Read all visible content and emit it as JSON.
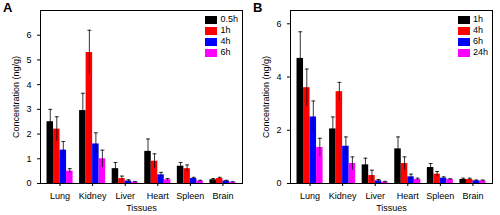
{
  "chart_data": [
    {
      "type": "bar",
      "title": "A",
      "x_label": "Tissues",
      "y_label": "Concentration (ng/g)",
      "categories": [
        "Lung",
        "Kidney",
        "Liver",
        "Heart",
        "Spleen",
        "Brain"
      ],
      "series": [
        {
          "name": "0.5h",
          "color": "#000000",
          "values": [
            2.5,
            2.95,
            0.6,
            1.3,
            0.7,
            0.15
          ],
          "errors": [
            0.5,
            0.7,
            0.25,
            0.5,
            0.15,
            0.05
          ]
        },
        {
          "name": "1h",
          "color": "#ff0000",
          "values": [
            2.2,
            5.3,
            0.2,
            0.9,
            0.6,
            0.2
          ],
          "errors": [
            0.5,
            0.9,
            0.1,
            0.3,
            0.15,
            0.05
          ]
        },
        {
          "name": "4h",
          "color": "#0000ff",
          "values": [
            1.35,
            1.6,
            0.1,
            0.35,
            0.2,
            0.1
          ],
          "errors": [
            0.35,
            0.45,
            0.05,
            0.1,
            0.05,
            0.03
          ]
        },
        {
          "name": "6h",
          "color": "#ff00ff",
          "values": [
            0.5,
            1.0,
            0.05,
            0.15,
            0.1,
            0.05
          ],
          "errors": [
            0.1,
            0.35,
            0.03,
            0.05,
            0.03,
            0.02
          ]
        }
      ],
      "ylim": [
        0,
        7
      ],
      "yticks": [
        0,
        1,
        2,
        3,
        4,
        5,
        6
      ],
      "legend": "upper right"
    },
    {
      "type": "bar",
      "title": "B",
      "x_label": "Tissues",
      "y_label": "Concentration (ng/g)",
      "categories": [
        "Lung",
        "Kidney",
        "Liver",
        "Heart",
        "Spleen",
        "Brain"
      ],
      "series": [
        {
          "name": "1h",
          "color": "#000000",
          "values": [
            4.7,
            2.05,
            0.7,
            1.3,
            0.6,
            0.15
          ],
          "errors": [
            1.0,
            0.45,
            0.25,
            0.45,
            0.15,
            0.05
          ]
        },
        {
          "name": "4h",
          "color": "#ff0000",
          "values": [
            3.6,
            3.45,
            0.3,
            0.75,
            0.35,
            0.15
          ],
          "errors": [
            0.7,
            0.35,
            0.2,
            0.25,
            0.1,
            0.05
          ]
        },
        {
          "name": "6h",
          "color": "#0000ff",
          "values": [
            2.5,
            1.4,
            0.1,
            0.25,
            0.2,
            0.1
          ],
          "errors": [
            0.6,
            0.35,
            0.05,
            0.1,
            0.05,
            0.03
          ]
        },
        {
          "name": "24h",
          "color": "#ff00ff",
          "values": [
            1.35,
            0.75,
            0.05,
            0.15,
            0.15,
            0.1
          ],
          "errors": [
            0.35,
            0.25,
            0.03,
            0.05,
            0.03,
            0.03
          ]
        }
      ],
      "ylim": [
        0,
        6.5
      ],
      "yticks": [
        0,
        2,
        4,
        6
      ],
      "legend": "upper right"
    }
  ]
}
